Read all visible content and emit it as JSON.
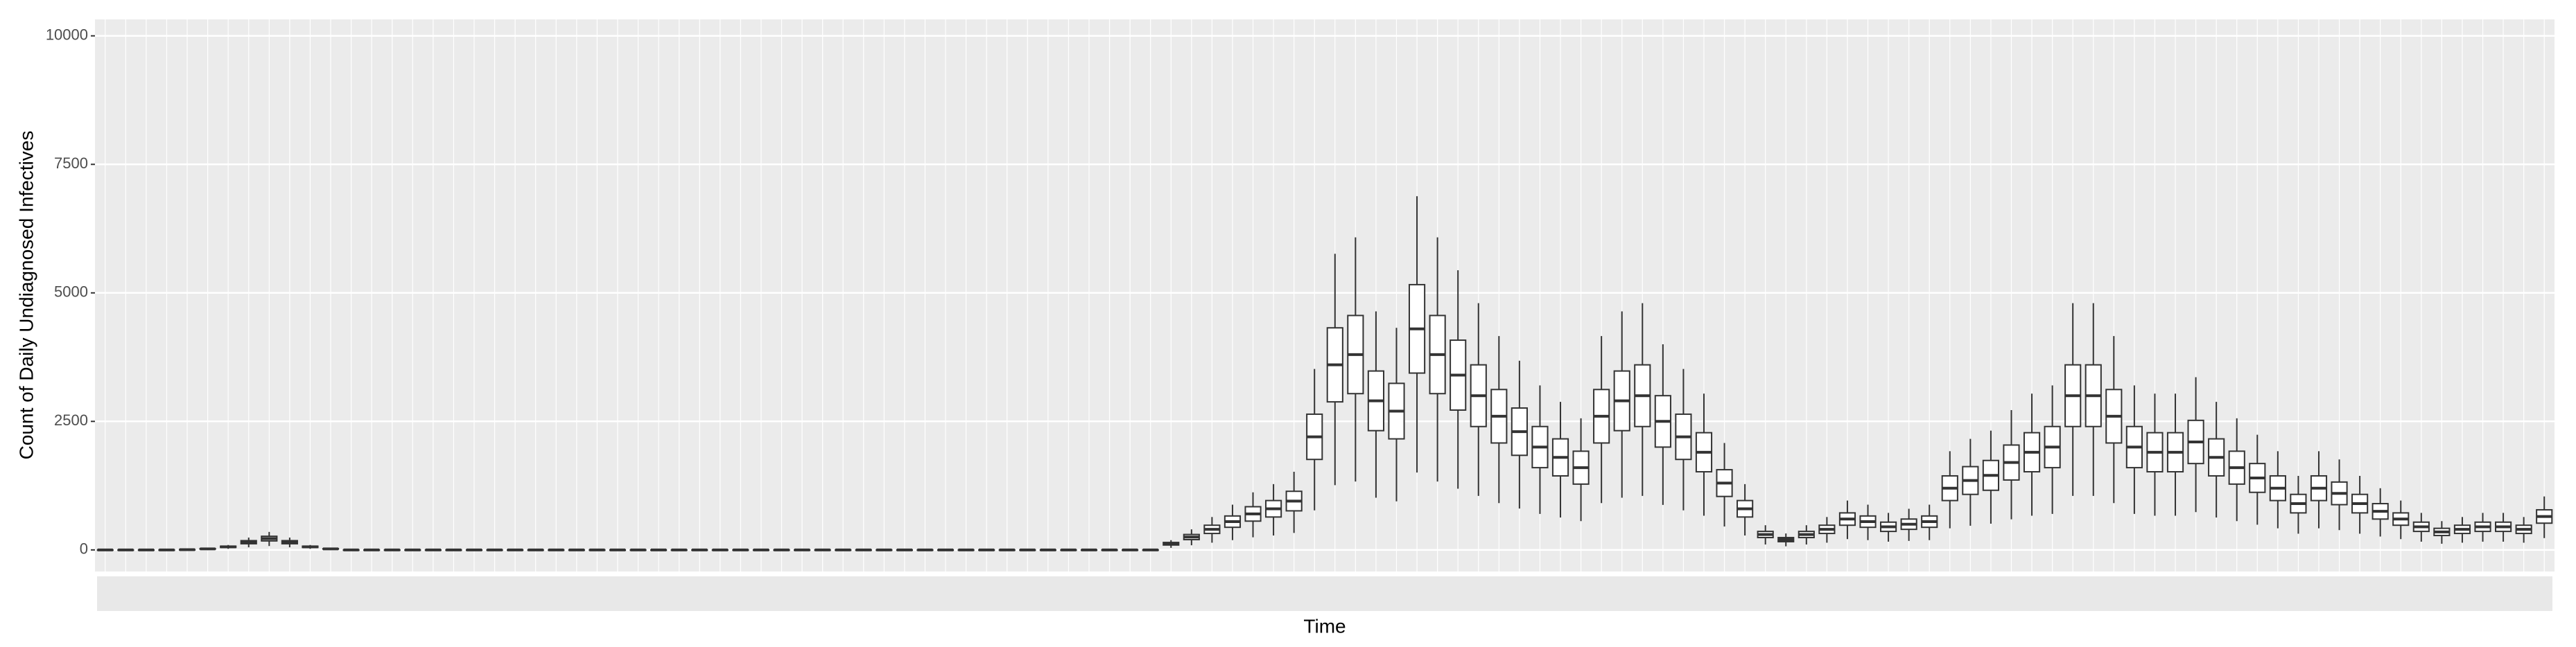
{
  "chart_data": {
    "type": "boxplot",
    "y_label": "Count of Daily Undiagnosed Infectives",
    "x_label": "Time",
    "ylim": [
      -420,
      10320
    ],
    "yticks": [
      {
        "value": 0,
        "label": "0"
      },
      {
        "value": 2500,
        "label": "2500"
      },
      {
        "value": 5000,
        "label": "5000"
      },
      {
        "value": 7500,
        "label": "7500"
      },
      {
        "value": 10000,
        "label": "10000"
      }
    ],
    "grid": true,
    "color": "#333333",
    "median": [
      0,
      0,
      0,
      0,
      5,
      20,
      60,
      150,
      220,
      150,
      60,
      20,
      0,
      0,
      0,
      0,
      0,
      0,
      0,
      0,
      0,
      0,
      0,
      0,
      0,
      0,
      0,
      0,
      0,
      0,
      0,
      0,
      0,
      0,
      0,
      0,
      0,
      0,
      0,
      0,
      0,
      0,
      0,
      0,
      0,
      0,
      0,
      0,
      0,
      0,
      0,
      0,
      120,
      250,
      400,
      550,
      700,
      800,
      950,
      2200,
      3600,
      3800,
      2900,
      2700,
      4300,
      3800,
      3400,
      3000,
      2600,
      2300,
      2000,
      1800,
      1600,
      2600,
      2900,
      3000,
      2500,
      2200,
      1900,
      1300,
      800,
      300,
      200,
      300,
      400,
      600,
      550,
      450,
      500,
      550,
      1200,
      1350,
      1450,
      1700,
      1900,
      2000,
      3000,
      3000,
      2600,
      2000,
      1900,
      1900,
      2100,
      1800,
      1600,
      1400,
      1200,
      900,
      1200,
      1100,
      900,
      750,
      600,
      450,
      350,
      400,
      450,
      450,
      400,
      650
    ],
    "q1": [
      0,
      0,
      0,
      0,
      4,
      16,
      48,
      120,
      175,
      120,
      48,
      16,
      0,
      0,
      0,
      0,
      0,
      0,
      0,
      0,
      0,
      0,
      0,
      0,
      0,
      0,
      0,
      0,
      0,
      0,
      0,
      0,
      0,
      0,
      0,
      0,
      0,
      0,
      0,
      0,
      0,
      0,
      0,
      0,
      0,
      0,
      0,
      0,
      0,
      0,
      0,
      0,
      95,
      200,
      320,
      440,
      560,
      640,
      760,
      1760,
      2880,
      3040,
      2320,
      2160,
      3440,
      3040,
      2720,
      2400,
      2080,
      1840,
      1600,
      1440,
      1280,
      2080,
      2320,
      2400,
      2000,
      1760,
      1520,
      1040,
      640,
      240,
      160,
      240,
      320,
      480,
      440,
      360,
      400,
      440,
      960,
      1080,
      1160,
      1360,
      1520,
      1600,
      2400,
      2400,
      2080,
      1600,
      1520,
      1520,
      1680,
      1440,
      1280,
      1120,
      960,
      720,
      960,
      880,
      720,
      600,
      480,
      360,
      280,
      320,
      360,
      360,
      320,
      520
    ],
    "q3": [
      0,
      0,
      0,
      0,
      6,
      24,
      72,
      180,
      265,
      180,
      72,
      24,
      0,
      0,
      0,
      0,
      0,
      0,
      0,
      0,
      0,
      0,
      0,
      0,
      0,
      0,
      0,
      0,
      0,
      0,
      0,
      0,
      0,
      0,
      0,
      0,
      0,
      0,
      0,
      0,
      0,
      0,
      0,
      0,
      0,
      0,
      0,
      0,
      0,
      0,
      0,
      0,
      145,
      300,
      480,
      660,
      840,
      960,
      1140,
      2640,
      4320,
      4560,
      3480,
      3240,
      5160,
      4560,
      4080,
      3600,
      3120,
      2760,
      2400,
      2160,
      1920,
      3120,
      3480,
      3600,
      3000,
      2640,
      2280,
      1560,
      960,
      360,
      240,
      360,
      480,
      720,
      660,
      540,
      600,
      660,
      1440,
      1620,
      1740,
      2040,
      2280,
      2400,
      3600,
      3600,
      3120,
      2400,
      2280,
      2280,
      2520,
      2160,
      1920,
      1680,
      1440,
      1080,
      1440,
      1320,
      1080,
      900,
      720,
      540,
      420,
      480,
      540,
      540,
      480,
      780
    ],
    "lower": [
      0,
      0,
      0,
      0,
      2,
      7,
      21,
      50,
      75,
      50,
      21,
      7,
      0,
      0,
      0,
      0,
      0,
      0,
      0,
      0,
      0,
      0,
      0,
      0,
      0,
      0,
      0,
      0,
      0,
      0,
      0,
      0,
      0,
      0,
      0,
      0,
      0,
      0,
      0,
      0,
      0,
      0,
      0,
      0,
      0,
      0,
      0,
      0,
      0,
      0,
      0,
      0,
      40,
      90,
      140,
      190,
      245,
      280,
      330,
      770,
      1260,
      1330,
      1015,
      945,
      1505,
      1330,
      1190,
      1050,
      910,
      805,
      700,
      630,
      560,
      910,
      1015,
      1050,
      875,
      770,
      665,
      455,
      280,
      105,
      70,
      105,
      140,
      210,
      190,
      160,
      175,
      190,
      420,
      470,
      510,
      595,
      665,
      700,
      1050,
      1050,
      910,
      700,
      665,
      665,
      735,
      630,
      560,
      490,
      420,
      315,
      420,
      385,
      315,
      260,
      210,
      160,
      120,
      140,
      160,
      160,
      140,
      230
    ],
    "upper": [
      0,
      0,
      0,
      0,
      8,
      32,
      96,
      240,
      350,
      240,
      96,
      32,
      0,
      0,
      0,
      0,
      0,
      0,
      0,
      0,
      0,
      0,
      0,
      0,
      0,
      0,
      0,
      0,
      0,
      0,
      0,
      0,
      0,
      0,
      0,
      0,
      0,
      0,
      0,
      0,
      0,
      0,
      0,
      0,
      0,
      0,
      0,
      0,
      0,
      0,
      0,
      0,
      190,
      400,
      640,
      880,
      1120,
      1280,
      1520,
      3520,
      5760,
      6080,
      4640,
      4320,
      6880,
      6080,
      5440,
      4800,
      4160,
      3680,
      3200,
      2880,
      2560,
      4160,
      4640,
      4800,
      4000,
      3520,
      3040,
      2080,
      1280,
      480,
      320,
      480,
      640,
      960,
      880,
      720,
      800,
      880,
      1920,
      2160,
      2320,
      2720,
      3040,
      3200,
      4800,
      4800,
      4160,
      3200,
      3040,
      3040,
      3360,
      2880,
      2560,
      2240,
      1920,
      1440,
      1920,
      1760,
      1440,
      1200,
      960,
      720,
      560,
      640,
      720,
      720,
      640,
      1040
    ]
  }
}
